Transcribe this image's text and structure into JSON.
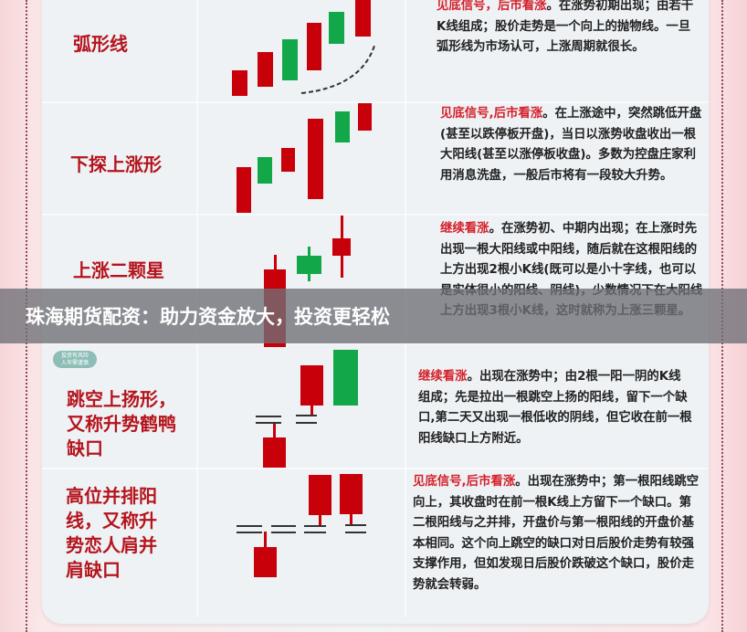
{
  "banner": {
    "text": "珠海期货配资：助力资金放大，投资更轻松"
  },
  "badge": {
    "line1": "投资有风险",
    "line2": "入市需谨慎"
  },
  "colors": {
    "bullish_candle": "#c8000a",
    "bearish_candle": "#12a84a",
    "title": "#b5141c",
    "highlight": "#d4202a"
  },
  "rows": [
    {
      "title": "弧形线",
      "highlight": "见底信号，后市看涨",
      "text": "。在涨势初期出现；由若干K线组成；股价走势是一个向上的抛物线。一旦弧形线为市场认可，上涨周期就很长。"
    },
    {
      "title": "下探上涨形",
      "highlight": "见底信号,后市看涨",
      "text": "。在上涨途中，突然跳低开盘(甚至以跌停板开盘)，当日以涨势收盘收出一根大阳线(甚至以涨停板收盘)。多数为控盘庄家利用消息洗盘，一般后市将有一段较大升势。"
    },
    {
      "title": "上涨二颗星",
      "highlight": "继续看涨",
      "text": "。在涨势初、中期内出现；在上涨时先出现一根大阳线或中阳线，随后就在这根阳线的上方出现2根小K线(既可以是小十字线，也可以是实体很小的阳线、阴线)，少数情况下在大阳线上方出现3根小K线，这时就称为上涨三颗星。"
    },
    {
      "title": "跳空上扬形，又称升势鹤鸭缺口",
      "highlight": "继续看涨",
      "text": "。出现在涨势中；由2根一阳一阴的K线组成；先是拉出一根跳空上扬的阳线，留下一个缺口,第二天又出现一根低收的阴线，但它收在前一根阳线缺口上方附近。"
    },
    {
      "title": "高位并排阳线，又称升势恋人肩并肩缺口",
      "highlight": "见底信号,后市看涨",
      "text": "。出现在涨势中；第一根阳线跳空向上，其收盘时在前一根K线上方留下一个缺口。第二根阳线与之并排，开盘价与第一根阳线的开盘价基本相同。这个向上跳空的缺口对日后股价走势有较强支撑作用，但如发现日后股价跌破这个缺口，股价走势就会转弱。"
    }
  ]
}
